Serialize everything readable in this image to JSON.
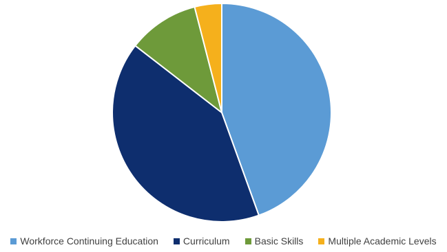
{
  "chart_data": {
    "type": "pie",
    "title": "",
    "categories": [
      "Workforce Continuing Education",
      "Curriculum",
      "Basic Skills",
      "Multiple Academic Levels"
    ],
    "values": [
      44.5,
      41.0,
      10.5,
      4.0
    ],
    "colors": [
      "#5b9bd5",
      "#0e2e6e",
      "#6e9a3a",
      "#f5b01c"
    ],
    "start": "12 o'clock, clockwise",
    "legend_position": "bottom"
  },
  "legend": {
    "items": [
      {
        "label": "Workforce Continuing Education",
        "color": "#5b9bd5"
      },
      {
        "label": "Curriculum",
        "color": "#0e2e6e"
      },
      {
        "label": "Basic Skills",
        "color": "#6e9a3a"
      },
      {
        "label": "Multiple Academic Levels",
        "color": "#f5b01c"
      }
    ]
  }
}
